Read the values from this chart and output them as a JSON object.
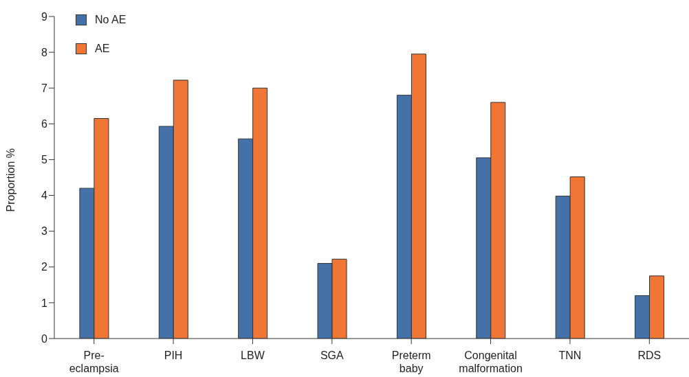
{
  "chart_data": {
    "type": "bar",
    "ylabel": "Proportion %",
    "categories": [
      "Pre-eclampsia",
      "PIH",
      "LBW",
      "SGA",
      "Preterm baby",
      "Congenital malformation",
      "TNN",
      "RDS"
    ],
    "series": [
      {
        "name": "No AE",
        "color": "#4472a8",
        "values": [
          4.2,
          5.93,
          5.58,
          2.1,
          6.8,
          5.05,
          3.98,
          1.2
        ]
      },
      {
        "name": "AE",
        "color": "#f07636",
        "values": [
          6.15,
          7.22,
          7.0,
          2.22,
          7.95,
          6.6,
          4.52,
          1.75
        ]
      }
    ],
    "ylim": [
      0,
      9
    ],
    "yticks": [
      0,
      1,
      2,
      3,
      4,
      5,
      6,
      7,
      8,
      9
    ],
    "grid": false,
    "legend": "top left"
  }
}
